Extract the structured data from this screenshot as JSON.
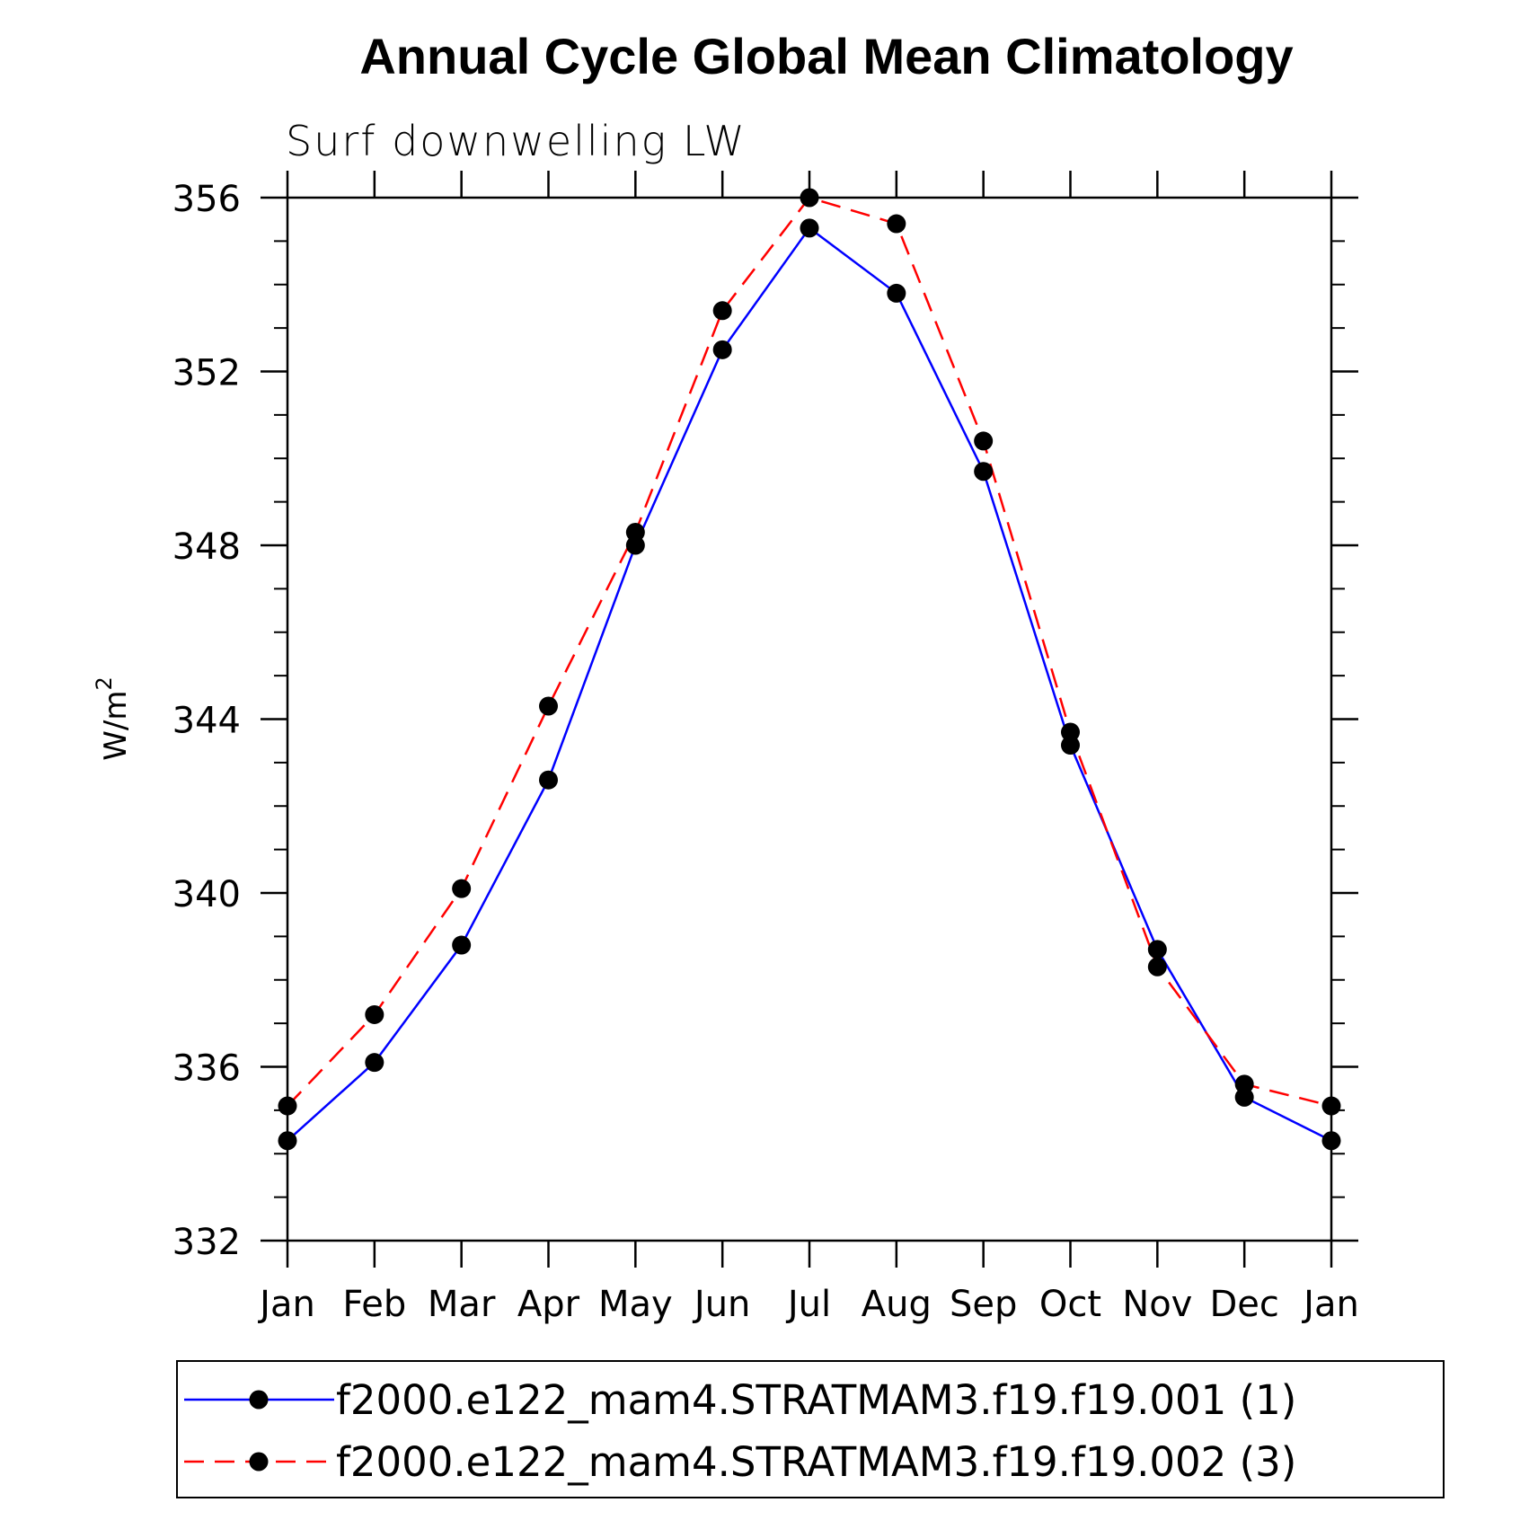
{
  "chart_data": {
    "type": "line",
    "title": "Annual Cycle Global Mean Climatology",
    "subtitle": "Surf downwelling LW",
    "ylabel": "W/m",
    "ylabel_superscript": "2",
    "xlabel": "",
    "categories": [
      "Jan",
      "Feb",
      "Mar",
      "Apr",
      "May",
      "Jun",
      "Jul",
      "Aug",
      "Sep",
      "Oct",
      "Nov",
      "Dec",
      "Jan"
    ],
    "ylim": [
      332,
      356
    ],
    "yticks": [
      332,
      336,
      340,
      344,
      348,
      352,
      356
    ],
    "series": [
      {
        "name": "f2000.e122_mam4.STRATMAM3.f19.f19.001 (1)",
        "color": "#0000ff",
        "dash": "solid",
        "values": [
          334.3,
          336.1,
          338.8,
          342.6,
          348.0,
          352.5,
          355.3,
          353.8,
          349.7,
          343.4,
          338.7,
          335.3,
          334.3
        ]
      },
      {
        "name": "f2000.e122_mam4.STRATMAM3.f19.f19.002 (3)",
        "color": "#ff0000",
        "dash": "dashed",
        "values": [
          335.1,
          337.2,
          340.1,
          344.3,
          348.3,
          353.4,
          356.0,
          355.4,
          350.4,
          343.7,
          338.3,
          335.6,
          335.1
        ]
      }
    ],
    "legend_position": "bottom"
  }
}
